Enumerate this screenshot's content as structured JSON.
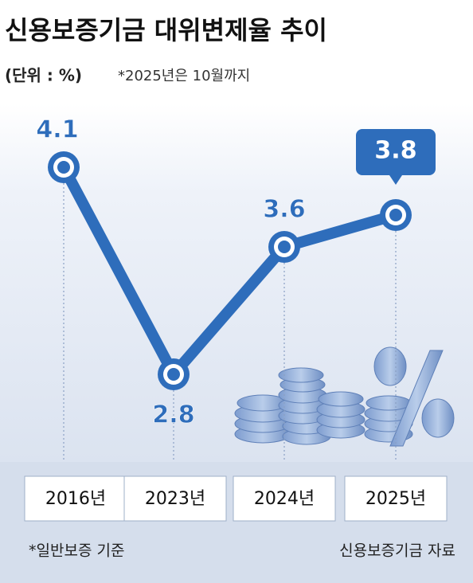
{
  "chart_data": {
    "type": "line",
    "title": "신용보증기금 대위변제율 추이",
    "subtitle": "(단위 : %)",
    "note": "*2025년은 10월까지",
    "categories": [
      "2016년",
      "2023년",
      "2024년",
      "2025년"
    ],
    "values": [
      4.1,
      2.8,
      3.6,
      3.8
    ],
    "color": "#2e6dbb",
    "footnote": "*일반보증 기준",
    "source": "신용보증기금 자료"
  }
}
